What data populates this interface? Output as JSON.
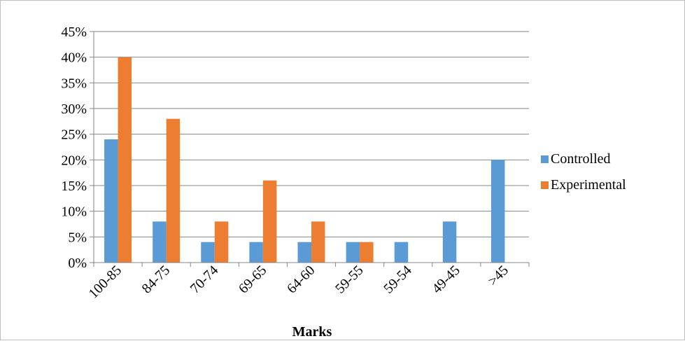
{
  "chart_data": {
    "type": "bar",
    "title": "",
    "xlabel": "Marks",
    "ylabel": "",
    "categories": [
      "100-85",
      "84-75",
      "70-74",
      "69-65",
      "64-60",
      "59-55",
      "59-54",
      "49-45",
      ">45"
    ],
    "series": [
      {
        "name": "Controlled",
        "color": "#5b9bd5",
        "values": [
          24,
          8,
          4,
          4,
          4,
          4,
          4,
          8,
          20
        ]
      },
      {
        "name": "Experimental",
        "color": "#ed7d31",
        "values": [
          40,
          28,
          8,
          16,
          8,
          4,
          0,
          0,
          0
        ]
      }
    ],
    "ylim": [
      0,
      45
    ],
    "yticks": [
      "0%",
      "5%",
      "10%",
      "15%",
      "20%",
      "25%",
      "30%",
      "35%",
      "40%",
      "45%"
    ],
    "grid": true,
    "legend": "right"
  }
}
